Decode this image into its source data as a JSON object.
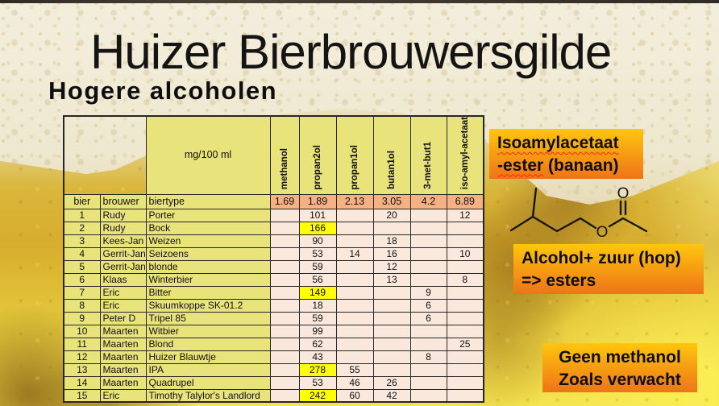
{
  "title": "Huizer Bierbrouwersgilde",
  "subtitle": "Hogere alcoholen",
  "table": {
    "unit_label": "mg/100 ml",
    "row_headers": [
      "bier",
      "brouwer",
      "biertype"
    ],
    "compound_columns": [
      "methanol",
      "propan2ol",
      "propan1ol",
      "butan1ol",
      "3-met-but1",
      "iso-amyl-acetaat"
    ],
    "retention_values": [
      "1.69",
      "1.89",
      "2.13",
      "3.05",
      "4.2",
      "6.89"
    ],
    "rows": [
      {
        "nr": "1",
        "brouwer": "Rudy",
        "biertype": "Porter",
        "values": [
          "",
          "101",
          "",
          "20",
          "",
          "12"
        ],
        "highlight": []
      },
      {
        "nr": "2",
        "brouwer": "Rudy",
        "biertype": "Bock",
        "values": [
          "",
          "166",
          "",
          "",
          "",
          ""
        ],
        "highlight": [
          1
        ]
      },
      {
        "nr": "3",
        "brouwer": "Kees-Jan",
        "biertype": "Weizen",
        "values": [
          "",
          "90",
          "",
          "18",
          "",
          ""
        ],
        "highlight": []
      },
      {
        "nr": "4",
        "brouwer": "Gerrit-Jan",
        "biertype": "Seizoens",
        "values": [
          "",
          "53",
          "14",
          "16",
          "",
          "10"
        ],
        "highlight": []
      },
      {
        "nr": "5",
        "brouwer": "Gerrit-Jan",
        "biertype": "blonde",
        "values": [
          "",
          "59",
          "",
          "12",
          "",
          ""
        ],
        "highlight": []
      },
      {
        "nr": "6",
        "brouwer": "Klaas",
        "biertype": "Winterbier",
        "values": [
          "",
          "56",
          "",
          "13",
          "",
          "8"
        ],
        "highlight": []
      },
      {
        "nr": "7",
        "brouwer": "Eric",
        "biertype": "Bitter",
        "values": [
          "",
          "149",
          "",
          "",
          "9",
          ""
        ],
        "highlight": [
          1
        ]
      },
      {
        "nr": "8",
        "brouwer": "Eric",
        "biertype": "Skuumkoppe SK-01.2",
        "values": [
          "",
          "18",
          "",
          "",
          "6",
          ""
        ],
        "highlight": []
      },
      {
        "nr": "9",
        "brouwer": "Peter D",
        "biertype": "Tripel 85",
        "values": [
          "",
          "59",
          "",
          "",
          "6",
          ""
        ],
        "highlight": []
      },
      {
        "nr": "10",
        "brouwer": "Maarten",
        "biertype": "Witbier",
        "values": [
          "",
          "99",
          "",
          "",
          "",
          ""
        ],
        "highlight": []
      },
      {
        "nr": "11",
        "brouwer": "Maarten",
        "biertype": "Blond",
        "values": [
          "",
          "62",
          "",
          "",
          "",
          "25"
        ],
        "highlight": []
      },
      {
        "nr": "12",
        "brouwer": "Maarten",
        "biertype": "Huizer Blauwtje",
        "values": [
          "",
          "43",
          "",
          "",
          "8",
          ""
        ],
        "highlight": []
      },
      {
        "nr": "13",
        "brouwer": "Maarten",
        "biertype": "IPA",
        "values": [
          "",
          "278",
          "55",
          "",
          "",
          ""
        ],
        "highlight": [
          1
        ]
      },
      {
        "nr": "14",
        "brouwer": "Maarten",
        "biertype": "Quadrupel",
        "values": [
          "",
          "53",
          "46",
          "26",
          "",
          ""
        ],
        "highlight": []
      },
      {
        "nr": "15",
        "brouwer": "Eric",
        "biertype": "Timothy Talylor's Landlord",
        "values": [
          "",
          "242",
          "60",
          "42",
          "",
          ""
        ],
        "highlight": [
          1
        ]
      }
    ]
  },
  "chart_data": {
    "type": "table",
    "title": "Hogere alcoholen (mg/100 ml)",
    "columns": [
      "bier",
      "brouwer",
      "biertype",
      "methanol",
      "propan2ol",
      "propan1ol",
      "butan1ol",
      "3-met-but1",
      "iso-amyl-acetaat"
    ],
    "retention_row": [
      1.69,
      1.89,
      2.13,
      3.05,
      4.2,
      6.89
    ],
    "rows": [
      [
        1,
        "Rudy",
        "Porter",
        null,
        101,
        null,
        20,
        null,
        12
      ],
      [
        2,
        "Rudy",
        "Bock",
        null,
        166,
        null,
        null,
        null,
        null
      ],
      [
        3,
        "Kees-Jan",
        "Weizen",
        null,
        90,
        null,
        18,
        null,
        null
      ],
      [
        4,
        "Gerrit-Jan",
        "Seizoens",
        null,
        53,
        14,
        16,
        null,
        10
      ],
      [
        5,
        "Gerrit-Jan",
        "blonde",
        null,
        59,
        null,
        12,
        null,
        null
      ],
      [
        6,
        "Klaas",
        "Winterbier",
        null,
        56,
        null,
        13,
        null,
        8
      ],
      [
        7,
        "Eric",
        "Bitter",
        null,
        149,
        null,
        null,
        9,
        null
      ],
      [
        8,
        "Eric",
        "Skuumkoppe SK-01.2",
        null,
        18,
        null,
        null,
        6,
        null
      ],
      [
        9,
        "Peter D",
        "Tripel 85",
        null,
        59,
        null,
        null,
        6,
        null
      ],
      [
        10,
        "Maarten",
        "Witbier",
        null,
        99,
        null,
        null,
        null,
        null
      ],
      [
        11,
        "Maarten",
        "Blond",
        null,
        62,
        null,
        null,
        null,
        25
      ],
      [
        12,
        "Maarten",
        "Huizer Blauwtje",
        null,
        43,
        null,
        null,
        8,
        null
      ],
      [
        13,
        "Maarten",
        "IPA",
        null,
        278,
        55,
        null,
        null,
        null
      ],
      [
        14,
        "Maarten",
        "Quadrupel",
        null,
        53,
        46,
        26,
        null,
        null
      ],
      [
        15,
        "Eric",
        "Timothy Talylor's Landlord",
        null,
        242,
        60,
        42,
        null,
        null
      ]
    ]
  },
  "callouts": {
    "banana": {
      "line1": "Isoamylacetaat",
      "line2_wavy": "-ester",
      "line2_rest": " (banaan)"
    },
    "esters": {
      "line1": "Alcohol+ zuur (hop)",
      "line2": "=> esters"
    },
    "methanol": {
      "line1": "Geen methanol",
      "line2": "Zoals verwacht"
    }
  },
  "molecule": {
    "ester_oxygen": "O",
    "carbonyl_oxygen": "O"
  },
  "colors": {
    "cell-yellow": "#e9e37b",
    "cell-pink": "#fbe8dc",
    "header-orange": "#f6b183",
    "highlight-yellow": "#ffff00",
    "callout-top": "#ffc60d",
    "callout-bottom": "#ee7418",
    "table-border": "#262626"
  }
}
